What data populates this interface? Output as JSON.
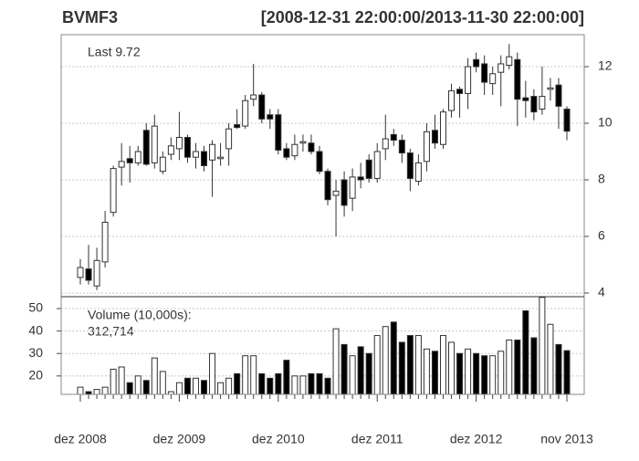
{
  "chart_data": {
    "type": "candlestick",
    "title": "BVMF3",
    "subtitle": "[2008-12-31 22:00:00/2013-11-30 22:00:00]",
    "last_label": "Last 9.72",
    "volume_title": "Volume (10,000s):",
    "volume_last_label": "312,714",
    "categories": [
      "dez 2008",
      null,
      null,
      null,
      null,
      null,
      null,
      null,
      null,
      null,
      null,
      null,
      "dez 2009",
      null,
      null,
      null,
      null,
      null,
      null,
      null,
      null,
      null,
      null,
      null,
      "dez 2010",
      null,
      null,
      null,
      null,
      null,
      null,
      null,
      null,
      null,
      null,
      null,
      "dez 2011",
      null,
      null,
      null,
      null,
      null,
      null,
      null,
      null,
      null,
      null,
      null,
      "dez 2012",
      null,
      null,
      null,
      null,
      null,
      null,
      null,
      null,
      null,
      null,
      "nov 2013"
    ],
    "open": [
      4.55,
      4.85,
      4.25,
      5.1,
      6.85,
      8.45,
      8.75,
      8.6,
      9.75,
      8.6,
      8.3,
      8.9,
      9.1,
      9.5,
      8.8,
      9.0,
      8.7,
      8.75,
      9.1,
      9.95,
      9.9,
      10.85,
      11.0,
      10.3,
      10.3,
      9.1,
      8.85,
      9.3,
      9.3,
      9.0,
      8.3,
      7.45,
      8.0,
      7.35,
      8.1,
      8.7,
      8.05,
      9.1,
      9.6,
      9.4,
      8.95,
      7.95,
      8.65,
      9.75,
      9.25,
      10.45,
      11.2,
      11.05,
      12.25,
      12.1,
      11.4,
      11.8,
      12.05,
      12.25,
      10.9,
      10.95,
      10.5,
      11.2,
      11.35,
      10.5
    ],
    "high": [
      5.2,
      5.7,
      5.6,
      6.9,
      8.5,
      9.3,
      9.2,
      9.2,
      10.0,
      10.3,
      9.0,
      9.5,
      10.4,
      9.6,
      9.3,
      9.2,
      9.4,
      9.3,
      10.0,
      10.5,
      11.0,
      12.1,
      11.1,
      10.5,
      10.5,
      9.3,
      9.6,
      9.6,
      9.6,
      9.2,
      8.4,
      8.0,
      8.3,
      8.4,
      8.6,
      8.9,
      9.3,
      10.3,
      9.8,
      9.6,
      9.1,
      8.9,
      10.0,
      10.3,
      10.5,
      11.4,
      11.3,
      12.3,
      12.5,
      12.4,
      12.0,
      12.4,
      12.8,
      12.5,
      11.5,
      11.2,
      12.0,
      11.6,
      11.6,
      10.6
    ],
    "low": [
      4.3,
      4.3,
      4.1,
      4.9,
      6.7,
      7.8,
      7.9,
      8.5,
      8.5,
      8.4,
      8.2,
      8.7,
      8.7,
      8.6,
      8.4,
      8.3,
      7.4,
      8.5,
      8.5,
      9.8,
      9.8,
      10.6,
      10.0,
      9.8,
      8.9,
      8.7,
      8.7,
      9.0,
      8.9,
      8.2,
      7.1,
      6.0,
      6.7,
      6.9,
      7.7,
      7.9,
      7.9,
      8.7,
      9.2,
      8.6,
      7.6,
      7.8,
      8.3,
      9.1,
      9.1,
      10.2,
      10.2,
      10.5,
      11.8,
      11.0,
      11.0,
      10.6,
      11.9,
      9.9,
      10.2,
      10.1,
      10.3,
      10.8,
      9.8,
      9.4
    ],
    "close": [
      4.9,
      4.45,
      5.15,
      6.5,
      8.4,
      8.65,
      8.6,
      9.0,
      8.55,
      9.9,
      8.8,
      9.2,
      9.5,
      8.8,
      9.0,
      8.5,
      9.25,
      8.8,
      9.8,
      9.85,
      10.8,
      11.0,
      10.15,
      10.15,
      9.05,
      8.8,
      9.25,
      9.35,
      9.0,
      8.3,
      7.3,
      7.6,
      7.1,
      8.1,
      8.0,
      8.05,
      9.0,
      9.45,
      9.4,
      8.95,
      8.05,
      8.6,
      9.7,
      9.3,
      10.4,
      11.15,
      11.05,
      12.0,
      12.0,
      11.45,
      11.75,
      12.1,
      12.35,
      10.85,
      10.8,
      10.4,
      10.95,
      11.25,
      10.6,
      9.72
    ],
    "volume": [
      15,
      13,
      14,
      15,
      23,
      24,
      17,
      20,
      18,
      28,
      22,
      13,
      17,
      19,
      19,
      18,
      30,
      17,
      19,
      21,
      29,
      29,
      21,
      19,
      21,
      27,
      20,
      20,
      21,
      21,
      19,
      41,
      34,
      29,
      33,
      30,
      38,
      42,
      44,
      35,
      38,
      38,
      32,
      31,
      38,
      35,
      30,
      32,
      30,
      29,
      29,
      31,
      36,
      36,
      49,
      37,
      55,
      43,
      34,
      31.2714
    ],
    "up_color": "#ffffff",
    "down_color": "#000000",
    "grid": true,
    "ylim": [
      3.87,
      13.13
    ],
    "yticks": [
      4,
      6,
      8,
      10,
      12
    ],
    "vol_ylim": [
      11.8,
      55.3
    ],
    "vol_yticks": [
      20,
      30,
      40,
      50
    ]
  }
}
